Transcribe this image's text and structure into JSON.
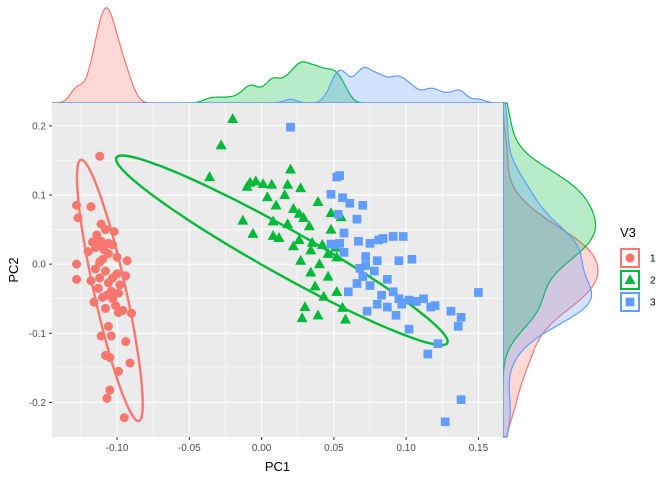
{
  "chart_data": {
    "type": "scatter",
    "xlabel": "PC1",
    "ylabel": "PC2",
    "xlim": [
      -0.145,
      0.167
    ],
    "ylim": [
      -0.25,
      0.233
    ],
    "x_ticks": [
      -0.1,
      -0.05,
      0.0,
      0.05,
      0.1,
      0.15
    ],
    "x_tick_labels": [
      "-0.10",
      "-0.05",
      "0.00",
      "0.05",
      "0.10",
      "0.15"
    ],
    "y_ticks": [
      -0.2,
      -0.1,
      0.0,
      0.1,
      0.2
    ],
    "y_tick_labels": [
      "-0.2",
      "-0.1",
      "0.0",
      "0.1",
      "0.2"
    ],
    "grid": true,
    "legend": {
      "title": "V3",
      "position": "right"
    },
    "marginal_density": {
      "top": true,
      "right": true
    },
    "series": [
      {
        "name": "1",
        "color": "#F8766D",
        "shape": "circle",
        "ellipse": {
          "center": [
            -0.105,
            -0.038
          ],
          "semi_major": 0.19,
          "semi_minor": 0.018,
          "angle_deg": -84
        },
        "points": [
          [
            -0.112,
            0.156
          ],
          [
            -0.128,
            0.085
          ],
          [
            -0.118,
            0.083
          ],
          [
            -0.127,
            0.067
          ],
          [
            -0.111,
            0.058
          ],
          [
            -0.108,
            0.05
          ],
          [
            -0.102,
            0.047
          ],
          [
            -0.114,
            0.042
          ],
          [
            -0.111,
            0.033
          ],
          [
            -0.117,
            0.032
          ],
          [
            -0.106,
            0.03
          ],
          [
            -0.103,
            0.028
          ],
          [
            -0.11,
            0.027
          ],
          [
            -0.115,
            0.024
          ],
          [
            -0.109,
            0.021
          ],
          [
            -0.12,
            0.018
          ],
          [
            -0.106,
            0.015
          ],
          [
            -0.1,
            0.01
          ],
          [
            -0.11,
            0.007
          ],
          [
            -0.112,
            0.003
          ],
          [
            -0.093,
            0.005
          ],
          [
            -0.128,
            0.0
          ],
          [
            -0.115,
            -0.007
          ],
          [
            -0.108,
            -0.01
          ],
          [
            -0.1,
            -0.014
          ],
          [
            -0.094,
            -0.017
          ],
          [
            -0.103,
            -0.02
          ],
          [
            -0.112,
            -0.02
          ],
          [
            -0.128,
            -0.022
          ],
          [
            -0.118,
            -0.024
          ],
          [
            -0.106,
            -0.027
          ],
          [
            -0.098,
            -0.03
          ],
          [
            -0.113,
            -0.035
          ],
          [
            -0.104,
            -0.039
          ],
          [
            -0.099,
            -0.042
          ],
          [
            -0.107,
            -0.045
          ],
          [
            -0.11,
            -0.048
          ],
          [
            -0.103,
            -0.05
          ],
          [
            -0.116,
            -0.055
          ],
          [
            -0.101,
            -0.06
          ],
          [
            -0.108,
            -0.064
          ],
          [
            -0.096,
            -0.067
          ],
          [
            -0.09,
            -0.071
          ],
          [
            -0.099,
            -0.07
          ],
          [
            -0.106,
            -0.09
          ],
          [
            -0.104,
            -0.104
          ],
          [
            -0.111,
            -0.104
          ],
          [
            -0.094,
            -0.112
          ],
          [
            -0.108,
            -0.132
          ],
          [
            -0.105,
            -0.135
          ],
          [
            -0.091,
            -0.143
          ],
          [
            -0.099,
            -0.155
          ],
          [
            -0.105,
            -0.182
          ],
          [
            -0.107,
            -0.194
          ],
          [
            -0.095,
            -0.222
          ]
        ]
      },
      {
        "name": "2",
        "color": "#00BA38",
        "shape": "triangle",
        "ellipse": {
          "center": [
            0.014,
            0.02
          ],
          "semi_major": 0.177,
          "semi_minor": 0.031,
          "angle_deg": -50
        },
        "points": [
          [
            -0.02,
            0.21
          ],
          [
            -0.028,
            0.172
          ],
          [
            -0.036,
            0.126
          ],
          [
            -0.008,
            0.118
          ],
          [
            -0.004,
            0.12
          ],
          [
            -0.01,
            0.112
          ],
          [
            0.001,
            0.116
          ],
          [
            0.007,
            0.115
          ],
          [
            0.02,
            0.137
          ],
          [
            0.018,
            0.115
          ],
          [
            0.016,
            0.1
          ],
          [
            0.027,
            0.11
          ],
          [
            0.039,
            0.09
          ],
          [
            0.004,
            0.097
          ],
          [
            0.01,
            0.085
          ],
          [
            0.022,
            0.08
          ],
          [
            0.026,
            0.073
          ],
          [
            0.029,
            0.067
          ],
          [
            0.048,
            0.074
          ],
          [
            0.055,
            0.068
          ],
          [
            -0.013,
            0.063
          ],
          [
            0.008,
            0.062
          ],
          [
            0.018,
            0.058
          ],
          [
            0.033,
            0.055
          ],
          [
            0.048,
            0.05
          ],
          [
            -0.006,
            0.044
          ],
          [
            0.008,
            0.041
          ],
          [
            0.012,
            0.038
          ],
          [
            0.026,
            0.035
          ],
          [
            0.035,
            0.031
          ],
          [
            0.042,
            0.028
          ],
          [
            0.051,
            0.024
          ],
          [
            0.022,
            0.026
          ],
          [
            0.034,
            0.02
          ],
          [
            0.046,
            0.015
          ],
          [
            0.052,
            0.01
          ],
          [
            0.027,
            0.005
          ],
          [
            0.04,
            0.0
          ],
          [
            0.034,
            -0.012
          ],
          [
            0.046,
            -0.018
          ],
          [
            0.037,
            -0.032
          ],
          [
            0.052,
            -0.04
          ],
          [
            0.043,
            -0.047
          ],
          [
            0.056,
            -0.063
          ],
          [
            0.039,
            -0.074
          ],
          [
            0.028,
            -0.078
          ],
          [
            0.058,
            -0.08
          ],
          [
            0.03,
            -0.062
          ]
        ]
      },
      {
        "name": "3",
        "color": "#619CFF",
        "shape": "square",
        "ellipse": null,
        "points": [
          [
            0.02,
            0.198
          ],
          [
            0.052,
            0.126
          ],
          [
            0.054,
            0.128
          ],
          [
            0.048,
            0.101
          ],
          [
            0.056,
            0.096
          ],
          [
            0.061,
            0.088
          ],
          [
            0.07,
            0.085
          ],
          [
            0.066,
            0.065
          ],
          [
            0.053,
            0.072
          ],
          [
            0.057,
            0.045
          ],
          [
            0.067,
            0.033
          ],
          [
            0.075,
            0.03
          ],
          [
            0.081,
            0.035
          ],
          [
            0.084,
            0.037
          ],
          [
            0.091,
            0.04
          ],
          [
            0.098,
            0.04
          ],
          [
            0.051,
            0.028
          ],
          [
            0.054,
            0.03
          ],
          [
            0.048,
            0.029
          ],
          [
            0.057,
            0.017
          ],
          [
            0.072,
            0.011
          ],
          [
            0.08,
            0.005
          ],
          [
            0.095,
            0.005
          ],
          [
            0.104,
            0.007
          ],
          [
            0.072,
            -0.002
          ],
          [
            0.068,
            -0.006
          ],
          [
            0.078,
            -0.01
          ],
          [
            0.07,
            -0.018
          ],
          [
            0.066,
            -0.028
          ],
          [
            0.075,
            -0.031
          ],
          [
            0.087,
            -0.022
          ],
          [
            0.091,
            -0.04
          ],
          [
            0.06,
            -0.04
          ],
          [
            0.083,
            -0.045
          ],
          [
            0.095,
            -0.05
          ],
          [
            0.097,
            -0.058
          ],
          [
            0.102,
            -0.052
          ],
          [
            0.107,
            -0.054
          ],
          [
            0.112,
            -0.05
          ],
          [
            0.117,
            -0.062
          ],
          [
            0.12,
            -0.06
          ],
          [
            0.087,
            -0.062
          ],
          [
            0.08,
            -0.058
          ],
          [
            0.073,
            -0.068
          ],
          [
            0.093,
            -0.074
          ],
          [
            0.102,
            -0.094
          ],
          [
            0.138,
            -0.077
          ],
          [
            0.136,
            -0.09
          ],
          [
            0.15,
            -0.041
          ],
          [
            0.131,
            -0.068
          ],
          [
            0.122,
            -0.115
          ],
          [
            0.115,
            -0.13
          ],
          [
            0.138,
            -0.196
          ],
          [
            0.127,
            -0.228
          ]
        ]
      }
    ]
  }
}
